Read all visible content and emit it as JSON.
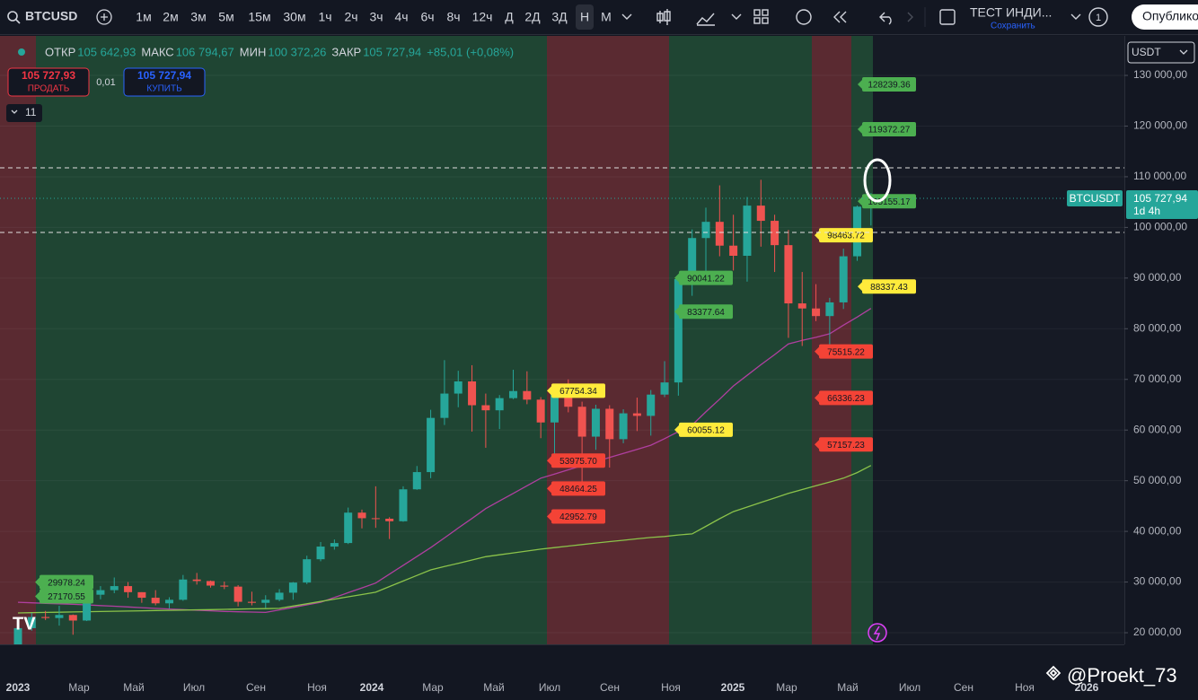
{
  "toolbar": {
    "symbol": "BTCUSD",
    "intervals": [
      "1м",
      "2м",
      "3м",
      "5м",
      "15м",
      "30м",
      "1ч",
      "2ч",
      "3ч",
      "4ч",
      "6ч",
      "8ч",
      "12ч",
      "Д",
      "2Д",
      "3Д",
      "Н",
      "М"
    ],
    "layout_name": "ТЕСТ ИНДИ...",
    "save": "Сохранить",
    "alerts": "1",
    "publish": "Опублико"
  },
  "legend": {
    "open_label": "ОТКР",
    "open": "105 642,93",
    "high_label": "МАКС",
    "high": "106 794,67",
    "low_label": "МИН",
    "low": "100 372,26",
    "close_label": "ЗАКР",
    "close": "105 727,94",
    "change": "+85,01 (+0,08%)"
  },
  "trade": {
    "sell_price": "105 727,93",
    "sell": "ПРОДАТЬ",
    "spread": "0,01",
    "buy_price": "105 727,94",
    "buy": "КУПИТЬ"
  },
  "indicators_count": "11",
  "currency": "USDT",
  "watermark": "@Proekt_73",
  "chart_data": {
    "type": "candlestick",
    "ylim": [
      17700,
      137800
    ],
    "yticks": [
      {
        "value": 20000,
        "label": "20 000,00"
      },
      {
        "value": 30000,
        "label": "30 000,00"
      },
      {
        "value": 40000,
        "label": "40 000,00"
      },
      {
        "value": 50000,
        "label": "50 000,00"
      },
      {
        "value": 60000,
        "label": "60 000,00"
      },
      {
        "value": 70000,
        "label": "70 000,00"
      },
      {
        "value": 80000,
        "label": "80 000,00"
      },
      {
        "value": 90000,
        "label": "90 000,00"
      },
      {
        "value": 100000,
        "label": "100 000,00"
      },
      {
        "value": 110000,
        "label": "110 000,00"
      },
      {
        "value": 120000,
        "label": "120 000,00"
      },
      {
        "value": 130000,
        "label": "130 000,00"
      }
    ],
    "x_labels": [
      "2023",
      "Мар",
      "Май",
      "Июл",
      "Сен",
      "Ноя",
      "2024",
      "Мар",
      "Май",
      "Июл",
      "Сен",
      "Ноя",
      "2025",
      "Мар",
      "Май",
      "Июл",
      "Сен",
      "Ноя",
      "2026"
    ],
    "up_color": "#26a69a",
    "down_color": "#ef5350",
    "open": [
      16600,
      20900,
      23100,
      22900,
      23500,
      22400,
      27500,
      28400,
      29200,
      28000,
      26900,
      25800,
      26500,
      30500,
      30200,
      29300,
      29100,
      26100,
      25900,
      26500,
      27900,
      29900,
      34500,
      37000,
      37700,
      43700,
      42600,
      42500,
      42000,
      48300,
      51700,
      62400,
      67200,
      69600,
      64900,
      63900,
      66300,
      67700,
      66000,
      61500,
      67900,
      64600,
      58700,
      64200,
      58200,
      63300,
      62800,
      67000,
      69400,
      89800,
      97900,
      101100,
      96400,
      94400,
      104300,
      101300,
      96500,
      85000,
      84000,
      82500,
      85200,
      94300,
      105642.93
    ],
    "high": [
      21500,
      23900,
      24300,
      25300,
      23600,
      28900,
      29200,
      30900,
      30000,
      28000,
      28400,
      27000,
      31400,
      31800,
      30300,
      30100,
      29400,
      28100,
      27400,
      28600,
      30000,
      35200,
      37900,
      38400,
      44700,
      44300,
      48900,
      42800,
      48900,
      52900,
      64000,
      73800,
      71700,
      72800,
      67200,
      66900,
      71900,
      71600,
      66500,
      68300,
      70000,
      65600,
      65000,
      64900,
      64100,
      66400,
      67900,
      73600,
      89900,
      99600,
      103900,
      108300,
      102500,
      106000,
      109400,
      102500,
      99500,
      91200,
      88800,
      86100,
      95800,
      104300,
      106794.67
    ],
    "low": [
      16500,
      20400,
      22500,
      21400,
      19600,
      22300,
      26600,
      27800,
      26900,
      25900,
      25400,
      24800,
      26300,
      29500,
      28900,
      28600,
      25200,
      25400,
      24900,
      26200,
      26500,
      29600,
      34100,
      36400,
      37500,
      40600,
      40700,
      38500,
      41900,
      48200,
      50500,
      61000,
      64500,
      59700,
      56500,
      60200,
      66100,
      65100,
      58400,
      53500,
      63500,
      49000,
      56100,
      52600,
      57400,
      59800,
      58900,
      66500,
      66800,
      86500,
      90500,
      94300,
      91500,
      89300,
      96200,
      91200,
      78200,
      76600,
      81500,
      74400,
      83900,
      93400,
      100372.26
    ],
    "close": [
      20900,
      23100,
      22900,
      23500,
      22400,
      27500,
      28400,
      29200,
      28000,
      26900,
      25800,
      26500,
      30500,
      30200,
      29300,
      29100,
      26100,
      25900,
      26500,
      27900,
      29900,
      34500,
      37000,
      37700,
      43700,
      42600,
      42500,
      42000,
      48300,
      51700,
      62400,
      67200,
      69600,
      64900,
      63900,
      66300,
      67700,
      66000,
      61500,
      67900,
      64600,
      58700,
      64200,
      58200,
      63300,
      62800,
      67000,
      69400,
      89800,
      97900,
      101100,
      96400,
      94400,
      104300,
      101300,
      96500,
      85000,
      84000,
      82500,
      85200,
      94300,
      104100,
      105727.94
    ],
    "ma_series": [
      {
        "color": "#b03fa0",
        "values": [
          26000,
          25900,
          25800,
          25700,
          25600,
          25500,
          25360,
          25220,
          25080,
          24940,
          24800,
          24680,
          24560,
          24440,
          24320,
          24200,
          24130,
          24070,
          24000,
          24500,
          25000,
          25500,
          26000,
          26950,
          27900,
          28850,
          29800,
          31550,
          33300,
          35050,
          36800,
          38700,
          40650,
          42550,
          44500,
          46000,
          47500,
          49000,
          50500,
          51300,
          52150,
          52950,
          53800,
          54600,
          55400,
          56200,
          57000,
          58300,
          59700,
          61000,
          63600,
          66100,
          68700,
          70800,
          72900,
          74900,
          77000,
          77700,
          78300,
          79000,
          80700,
          82300,
          84000
        ]
      },
      {
        "color": "#8bc34a",
        "values": [
          23900,
          23950,
          24000,
          24040,
          24090,
          24140,
          24180,
          24230,
          24280,
          24330,
          24370,
          24420,
          24470,
          24520,
          24560,
          24610,
          24660,
          24710,
          24750,
          24800,
          25260,
          25710,
          26170,
          26630,
          27090,
          27540,
          28000,
          29100,
          30200,
          31300,
          32400,
          33050,
          33700,
          34350,
          35000,
          35380,
          35750,
          36130,
          36500,
          36800,
          37100,
          37400,
          37700,
          37980,
          38250,
          38530,
          38800,
          39000,
          39300,
          39500,
          41000,
          42500,
          43900,
          44800,
          45700,
          46600,
          47500,
          48250,
          49000,
          49750,
          50500,
          51600,
          53000
        ]
      }
    ],
    "levels": [
      {
        "value": 128239.36,
        "label": "128239.36",
        "color": "#4caf50"
      },
      {
        "value": 119372.27,
        "label": "119372.27",
        "color": "#4caf50"
      },
      {
        "value": 105155.17,
        "label": "105155.17",
        "color": "#4caf50"
      },
      {
        "value": 88337.43,
        "label": "88337.43",
        "color": "#ffeb3b"
      },
      {
        "value": 98463.72,
        "label": "98463.72",
        "color": "#ffeb3b"
      },
      {
        "value": 75515.22,
        "label": "75515.22",
        "color": "#f44336"
      },
      {
        "value": 66336.23,
        "label": "66336.23",
        "color": "#f44336"
      },
      {
        "value": 57157.23,
        "label": "57157.23",
        "color": "#f44336"
      },
      {
        "value": 90041.22,
        "label": "90041.22",
        "color": "#4caf50"
      },
      {
        "value": 83377.64,
        "label": "83377.64",
        "color": "#4caf50"
      },
      {
        "value": 60055.12,
        "label": "60055.12",
        "color": "#ffeb3b"
      },
      {
        "value": 67754.34,
        "label": "67754.34",
        "color": "#ffeb3b"
      },
      {
        "value": 53975.7,
        "label": "53975.70",
        "color": "#f44336"
      },
      {
        "value": 48464.25,
        "label": "48464.25",
        "color": "#f44336"
      },
      {
        "value": 42952.79,
        "label": "42952.79",
        "color": "#f44336"
      },
      {
        "value": 29978.24,
        "label": "29978.24",
        "color": "#4caf50"
      },
      {
        "value": 27170.55,
        "label": "27170.55",
        "color": "#4caf50"
      }
    ],
    "last_price": {
      "value": 105727.94,
      "symbol": "BTCUSDT",
      "label": "105 727,94",
      "countdown": "1d 4h"
    }
  }
}
